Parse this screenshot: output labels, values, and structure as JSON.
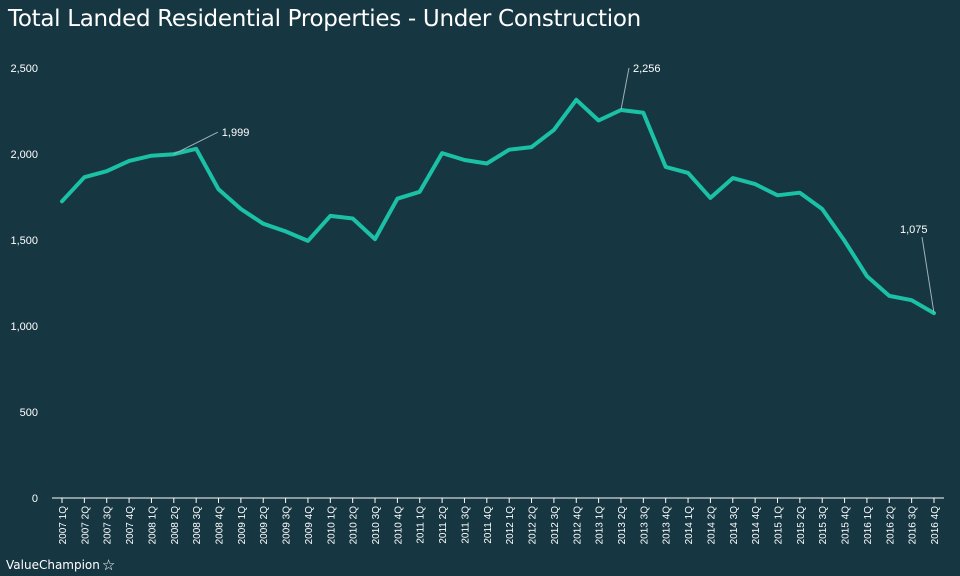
{
  "chart_data": {
    "type": "line",
    "title": "Total Landed Residential Properties - Under Construction",
    "xlabel": "",
    "ylabel": "",
    "categories": [
      "2007 1Q",
      "2007 2Q",
      "2007 3Q",
      "2007 4Q",
      "2008 1Q",
      "2008 2Q",
      "2008 3Q",
      "2008 4Q",
      "2009 1Q",
      "2009 2Q",
      "2009 3Q",
      "2009 4Q",
      "2010 1Q",
      "2010 2Q",
      "2010 3Q",
      "2010 4Q",
      "2011 1Q",
      "2011 2Q",
      "2011 3Q",
      "2011 4Q",
      "2012 1Q",
      "2012 2Q",
      "2012 3Q",
      "2012 4Q",
      "2013 1Q",
      "2013 2Q",
      "2013 3Q",
      "2013 4Q",
      "2014 1Q",
      "2014 2Q",
      "2014 3Q",
      "2014 4Q",
      "2015 1Q",
      "2015 2Q",
      "2015 3Q",
      "2015 4Q",
      "2016 1Q",
      "2016 2Q",
      "2016 3Q",
      "2016 4Q"
    ],
    "series": [
      {
        "values": [
          1725,
          1865,
          1900,
          1960,
          1990,
          1999,
          2030,
          1795,
          1680,
          1595,
          1550,
          1495,
          1640,
          1625,
          1505,
          1740,
          1780,
          2005,
          1965,
          1945,
          2025,
          2040,
          2140,
          2315,
          2195,
          2256,
          2240,
          1925,
          1890,
          1745,
          1860,
          1825,
          1760,
          1775,
          1680,
          1495,
          1290,
          1175,
          1150,
          1075
        ],
        "color": "#1bc1a5"
      }
    ],
    "ylim": [
      0,
      2500
    ],
    "yticks": [
      0,
      500,
      1000,
      1500,
      2000,
      2500
    ],
    "ytick_labels": [
      "0",
      "500",
      "1,000",
      "1,500",
      "2,000",
      "2,500"
    ],
    "grid": false,
    "legend": "none",
    "annotations": [
      {
        "index": 5,
        "text": "1,999"
      },
      {
        "index": 25,
        "text": "2,256"
      },
      {
        "index": 39,
        "text": "1,075"
      }
    ]
  },
  "brand": {
    "name": "ValueChampion",
    "star": "☆"
  },
  "colors": {
    "background": "#163642",
    "line": "#1bc1a5",
    "text": "#ffffff",
    "axis": "#ffffff"
  }
}
